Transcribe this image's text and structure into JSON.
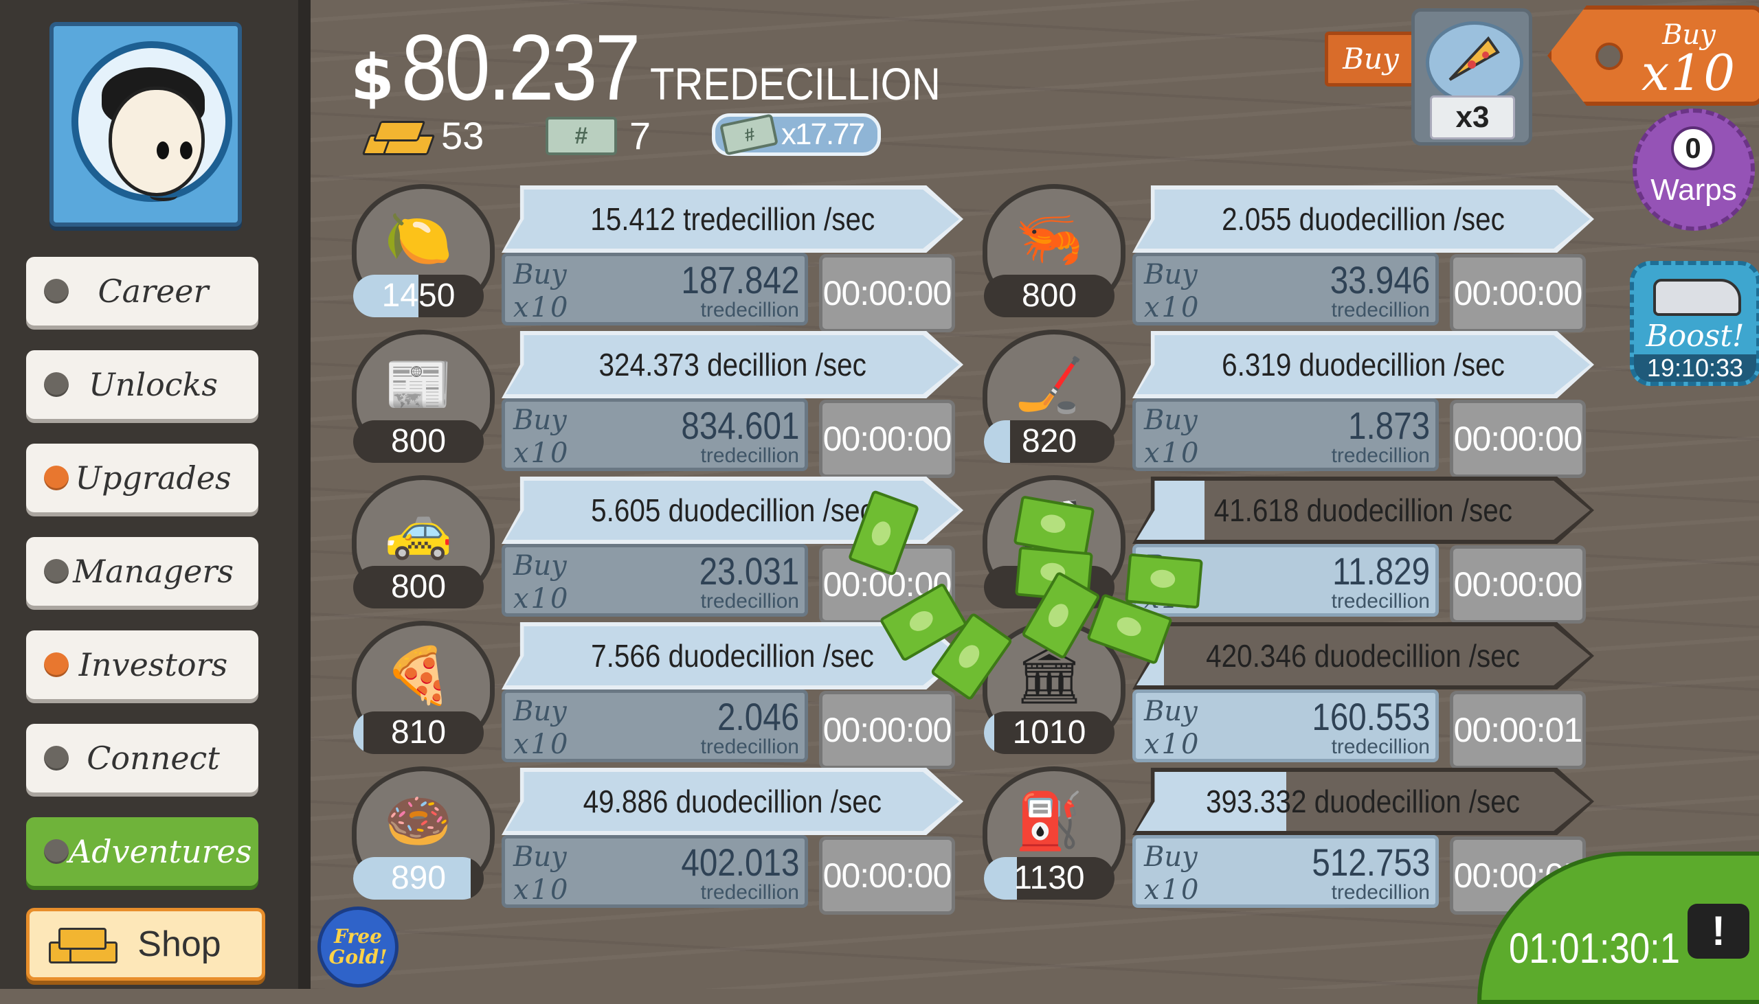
{
  "header": {
    "currency_symbol": "$",
    "money_amount": "80.237",
    "money_unit": "TREDECILLION",
    "gold_count": "53",
    "megaticket_count": "7",
    "multiplier": "x17.77"
  },
  "buy_controls": {
    "buy_label": "Buy",
    "pizza_multiplier": "x3",
    "buy_x10_top": "Buy",
    "buy_x10_bottom": "x10"
  },
  "warps": {
    "count": "0",
    "label": "Warps"
  },
  "boost": {
    "label": "Boost!",
    "timer": "19:10:33"
  },
  "sidebar": {
    "items": [
      {
        "label": "Career",
        "dot": "gray"
      },
      {
        "label": "Unlocks",
        "dot": "gray"
      },
      {
        "label": "Upgrades",
        "dot": "orange"
      },
      {
        "label": "Managers",
        "dot": "gray"
      },
      {
        "label": "Investors",
        "dot": "orange"
      },
      {
        "label": "Connect",
        "dot": "gray"
      },
      {
        "label": "Adventures",
        "dot": "gray"
      }
    ],
    "shop_label": "Shop",
    "free_gold": "Free Gold!"
  },
  "buy_btn": {
    "line1": "Buy",
    "line2": "x10"
  },
  "businesses": [
    {
      "icon": "lemon-icon",
      "owned": "1450",
      "progress": 0.5,
      "rate": "15.412 tredecillion /sec",
      "cost": "187.842",
      "cost_unit": "tredecillion",
      "timer": "00:00:00"
    },
    {
      "icon": "newspaper-icon",
      "owned": "800",
      "progress": 0.0,
      "rate": "324.373 decillion /sec",
      "cost": "834.601",
      "cost_unit": "tredecillion",
      "timer": "00:00:00"
    },
    {
      "icon": "car-wash-icon",
      "owned": "800",
      "progress": 0.0,
      "rate": "5.605 duodecillion /sec",
      "cost": "23.031",
      "cost_unit": "tredecillion",
      "timer": "00:00:00"
    },
    {
      "icon": "pizza-icon",
      "owned": "810",
      "progress": 0.08,
      "rate": "7.566 duodecillion /sec",
      "cost": "2.046",
      "cost_unit": "tredecillion",
      "timer": "00:00:00"
    },
    {
      "icon": "donut-icon",
      "owned": "890",
      "progress": 0.9,
      "rate": "49.886 duodecillion /sec",
      "cost": "402.013",
      "cost_unit": "tredecillion",
      "timer": "00:00:00"
    },
    {
      "icon": "shrimp-icon",
      "owned": "800",
      "progress": 0.0,
      "rate": "2.055 duodecillion /sec",
      "cost": "33.946",
      "cost_unit": "tredecillion",
      "timer": "00:00:00"
    },
    {
      "icon": "hockey-icon",
      "owned": "820",
      "progress": 0.2,
      "rate": "6.319 duodecillion /sec",
      "cost": "1.873",
      "cost_unit": "tredecillion",
      "timer": "00:00:00"
    },
    {
      "icon": "movie-icon",
      "owned": "",
      "progress": 0.0,
      "rate": "41.618 duodecillion /sec",
      "rate_fill": 0.15,
      "cost": "11.829",
      "cost_unit": "tredecillion",
      "timer": "00:00:00"
    },
    {
      "icon": "bank-icon",
      "owned": "1010",
      "progress": 0.08,
      "rate": "420.346 duodecillion /sec",
      "rate_fill": 0.06,
      "cost": "160.553",
      "cost_unit": "tredecillion",
      "timer": "00:00:01"
    },
    {
      "icon": "oil-rig-icon",
      "owned": "1130",
      "progress": 0.25,
      "rate": "393.332 duodecillion /sec",
      "rate_fill": 0.33,
      "cost": "512.753",
      "cost_unit": "tredecillion",
      "timer": "00:00:05"
    }
  ],
  "tv": {
    "timer": "01:01:30:1",
    "alert": "!"
  }
}
